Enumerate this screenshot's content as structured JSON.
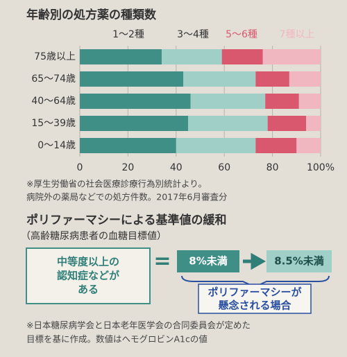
{
  "chart_data": {
    "type": "bar",
    "orientation": "horizontal",
    "stacked": true,
    "title": "年齢別の処方薬の種類数",
    "categories": [
      "75歳以上",
      "65〜74歳",
      "40〜64歳",
      "15〜39歳",
      "0〜14歳"
    ],
    "series": [
      {
        "name": "1〜2種",
        "color": "#3f8f86",
        "values": [
          34,
          43,
          46,
          45,
          40
        ]
      },
      {
        "name": "3〜4種",
        "color": "#9fcfc6",
        "values": [
          25,
          30,
          31,
          33,
          33
        ]
      },
      {
        "name": "5〜6種",
        "color": "#d9586e",
        "values": [
          17,
          14,
          14,
          16,
          17
        ]
      },
      {
        "name": "7種以上",
        "color": "#f1b7c0",
        "values": [
          24,
          13,
          9,
          6,
          10
        ]
      }
    ],
    "xlim": [
      0,
      100
    ],
    "xticks": [
      0,
      20,
      40,
      60,
      80,
      {
        "value": 100,
        "label": "100%"
      }
    ],
    "grid": true,
    "notes": [
      "※厚生労働省の社会医療診療行為別統計より。",
      "病院外の薬局などでの処方件数。2017年6月審査分"
    ]
  },
  "diagram": {
    "title": "ポリファーマシーによる基準値の緩和",
    "subtitle": "（高齢糖尿病患者の血糖目標値）",
    "condition": [
      "中等度以上の",
      "認知症などが",
      "ある"
    ],
    "equals": "=",
    "standard": "8%未満",
    "relaxed": "8.5%未満",
    "callout": [
      "ポリファーマシーが",
      "懸念される場合"
    ],
    "notes": [
      "※日本糖尿病学会と日本老年医学会の合同委員会が定めた",
      "目標を基に作成。数値はヘモグロビンA1cの値"
    ]
  }
}
